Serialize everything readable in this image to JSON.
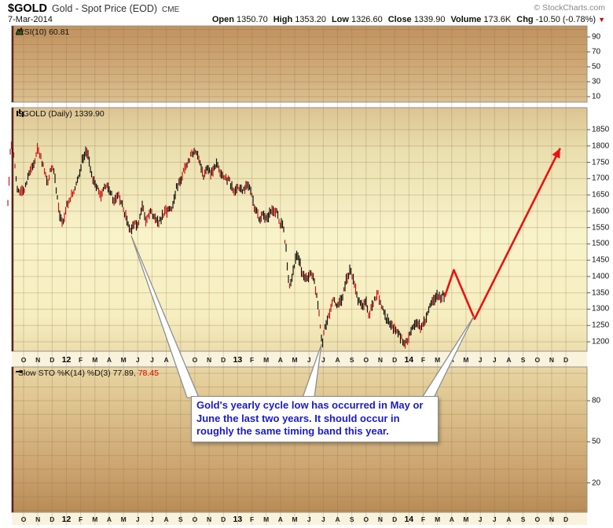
{
  "header": {
    "symbol": "$GOLD",
    "description": "Gold - Spot Price (EOD)",
    "exchange": "CME",
    "copyright": "© StockCharts.com",
    "date": "7-Mar-2014",
    "quote_items": [
      {
        "label": "Open",
        "value": "1350.70"
      },
      {
        "label": "High",
        "value": "1353.20"
      },
      {
        "label": "Low",
        "value": "1326.60"
      },
      {
        "label": "Close",
        "value": "1339.90"
      },
      {
        "label": "Volume",
        "value": "173.6K"
      },
      {
        "label": "Chg",
        "value": "-10.50 (-0.78%)"
      }
    ]
  },
  "panels": {
    "rsi": {
      "label": "RSI(10) 60.81"
    },
    "main": {
      "label": "$GOLD (Daily) 1339.90"
    },
    "sto": {
      "label_k": "Slow STO %K(14) %D(3) 77.89,",
      "label_d": "78.45"
    }
  },
  "annotation": {
    "text": "Gold's yearly cycle low has occurred in May or June the last two years. It should occur in roughly the same timing band this year."
  },
  "chart_data": {
    "type": "candlestick",
    "title": "$GOLD Gold - Spot Price (EOD) CME",
    "date_range": "Oct 2011 - Dec 2014",
    "x_axis": {
      "months": [
        "O",
        "N",
        "D",
        "12",
        "F",
        "M",
        "A",
        "M",
        "J",
        "J",
        "A",
        "S",
        "O",
        "N",
        "D",
        "13",
        "F",
        "M",
        "A",
        "M",
        "J",
        "J",
        "A",
        "S",
        "O",
        "N",
        "D",
        "14",
        "F",
        "M",
        "A",
        "M",
        "J",
        "J",
        "A",
        "S",
        "O",
        "N",
        "D"
      ],
      "year_label_indices": [
        3,
        15,
        27
      ]
    },
    "price_axis": {
      "min": 1200,
      "max": 1850,
      "step": 50,
      "ticks": [
        1850,
        1800,
        1750,
        1700,
        1650,
        1600,
        1550,
        1500,
        1450,
        1400,
        1350,
        1300,
        1250,
        1200
      ]
    },
    "rsi_axis": {
      "ticks": [
        90,
        70,
        50,
        30,
        10
      ]
    },
    "sto_axis": {
      "ticks": [
        80,
        50,
        20
      ]
    },
    "price_path_month_price": [
      [
        -1.1,
        1620
      ],
      [
        -0.9,
        1810
      ],
      [
        -0.7,
        1770
      ],
      [
        -0.4,
        1660
      ],
      [
        0,
        1660
      ],
      [
        0.4,
        1720
      ],
      [
        0.8,
        1760
      ],
      [
        1.0,
        1795
      ],
      [
        1.3,
        1750
      ],
      [
        1.7,
        1690
      ],
      [
        2.0,
        1745
      ],
      [
        2.2,
        1700
      ],
      [
        2.5,
        1590
      ],
      [
        2.8,
        1565
      ],
      [
        3.0,
        1615
      ],
      [
        3.4,
        1650
      ],
      [
        3.8,
        1700
      ],
      [
        4.2,
        1770
      ],
      [
        4.5,
        1785
      ],
      [
        4.8,
        1700
      ],
      [
        5.1,
        1680
      ],
      [
        5.4,
        1640
      ],
      [
        5.7,
        1680
      ],
      [
        6.0,
        1670
      ],
      [
        6.3,
        1635
      ],
      [
        6.6,
        1650
      ],
      [
        6.9,
        1620
      ],
      [
        7.2,
        1580
      ],
      [
        7.5,
        1540
      ],
      [
        7.8,
        1560
      ],
      [
        8.1,
        1565
      ],
      [
        8.3,
        1620
      ],
      [
        8.6,
        1565
      ],
      [
        8.9,
        1600
      ],
      [
        9.2,
        1580
      ],
      [
        9.5,
        1565
      ],
      [
        9.8,
        1590
      ],
      [
        10.1,
        1605
      ],
      [
        10.4,
        1610
      ],
      [
        10.7,
        1670
      ],
      [
        11.0,
        1695
      ],
      [
        11.3,
        1735
      ],
      [
        11.6,
        1760
      ],
      [
        12.0,
        1790
      ],
      [
        12.3,
        1755
      ],
      [
        12.6,
        1710
      ],
      [
        12.9,
        1730
      ],
      [
        13.2,
        1715
      ],
      [
        13.5,
        1750
      ],
      [
        13.8,
        1715
      ],
      [
        14.1,
        1700
      ],
      [
        14.4,
        1695
      ],
      [
        14.7,
        1660
      ],
      [
        15.0,
        1675
      ],
      [
        15.3,
        1660
      ],
      [
        15.6,
        1680
      ],
      [
        15.9,
        1665
      ],
      [
        16.2,
        1610
      ],
      [
        16.5,
        1575
      ],
      [
        16.8,
        1590
      ],
      [
        17.1,
        1580
      ],
      [
        17.4,
        1610
      ],
      [
        17.7,
        1600
      ],
      [
        18.0,
        1560
      ],
      [
        18.2,
        1550
      ],
      [
        18.4,
        1480
      ],
      [
        18.6,
        1360
      ],
      [
        18.8,
        1400
      ],
      [
        19.0,
        1440
      ],
      [
        19.2,
        1470
      ],
      [
        19.5,
        1415
      ],
      [
        19.8,
        1390
      ],
      [
        20.1,
        1415
      ],
      [
        20.4,
        1380
      ],
      [
        20.7,
        1290
      ],
      [
        20.9,
        1190
      ],
      [
        21.1,
        1240
      ],
      [
        21.4,
        1280
      ],
      [
        21.7,
        1330
      ],
      [
        22.0,
        1310
      ],
      [
        22.3,
        1330
      ],
      [
        22.6,
        1390
      ],
      [
        22.9,
        1420
      ],
      [
        23.1,
        1390
      ],
      [
        23.4,
        1330
      ],
      [
        23.7,
        1310
      ],
      [
        24.0,
        1330
      ],
      [
        24.2,
        1280
      ],
      [
        24.5,
        1320
      ],
      [
        24.8,
        1350
      ],
      [
        25.1,
        1310
      ],
      [
        25.4,
        1270
      ],
      [
        25.7,
        1250
      ],
      [
        26.0,
        1240
      ],
      [
        26.3,
        1230
      ],
      [
        26.6,
        1195
      ],
      [
        26.9,
        1205
      ],
      [
        27.2,
        1240
      ],
      [
        27.5,
        1255
      ],
      [
        27.8,
        1245
      ],
      [
        28.1,
        1260
      ],
      [
        28.4,
        1300
      ],
      [
        28.7,
        1330
      ],
      [
        29.0,
        1340
      ],
      [
        29.2,
        1330
      ],
      [
        29.4,
        1350
      ],
      [
        29.5,
        1338
      ]
    ],
    "projection_month_price": [
      [
        29.5,
        1337
      ],
      [
        30.15,
        1420
      ],
      [
        31.6,
        1270
      ],
      [
        37.6,
        1793
      ]
    ],
    "callout_anchor_month_price": [
      [
        7.55,
        1524
      ],
      [
        20.87,
        1192
      ],
      [
        31.55,
        1278
      ]
    ],
    "colors": {
      "bar_black": "#171310",
      "bar_red": "#cc1616",
      "projection_red": "#ee1010",
      "annotation_blue": "#1a1acc",
      "grid": "#8f7148"
    }
  }
}
